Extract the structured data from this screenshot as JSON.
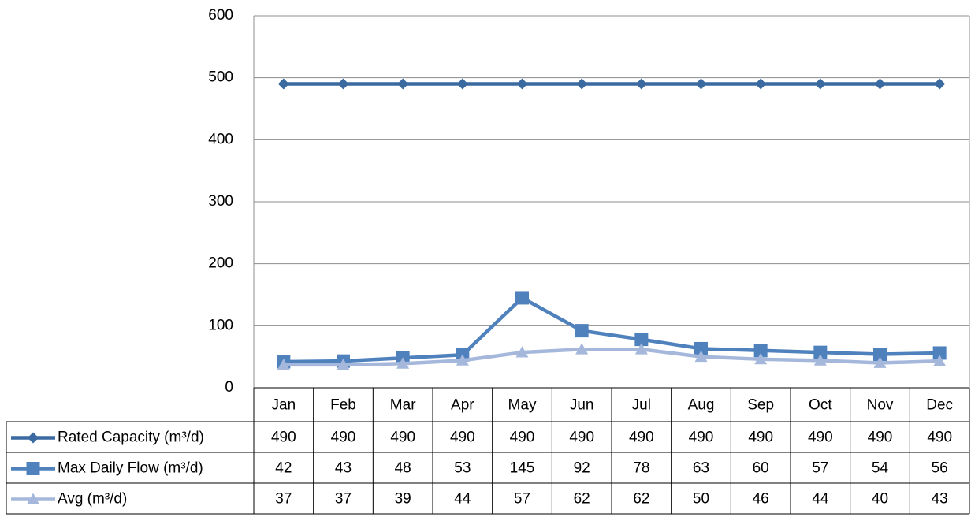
{
  "chart_data": {
    "type": "line",
    "categories": [
      "Jan",
      "Feb",
      "Mar",
      "Apr",
      "May",
      "Jun",
      "Jul",
      "Aug",
      "Sep",
      "Oct",
      "Nov",
      "Dec"
    ],
    "series": [
      {
        "name": "Rated Capacity (m³/d)",
        "color": "#3a6aa0",
        "marker": "diamond",
        "values": [
          490,
          490,
          490,
          490,
          490,
          490,
          490,
          490,
          490,
          490,
          490,
          490
        ]
      },
      {
        "name": "Max Daily Flow (m³/d)",
        "color": "#4f81bd",
        "marker": "square",
        "values": [
          42,
          43,
          48,
          53,
          145,
          92,
          78,
          63,
          60,
          57,
          54,
          56
        ]
      },
      {
        "name": "Avg (m³/d)",
        "color": "#a5b8dc",
        "marker": "triangle",
        "values": [
          37,
          37,
          39,
          44,
          57,
          62,
          62,
          50,
          46,
          44,
          40,
          43
        ]
      }
    ],
    "ylim": [
      0,
      600
    ],
    "yticks": [
      0,
      100,
      200,
      300,
      400,
      500,
      600
    ],
    "grid": true,
    "data_table": true
  }
}
